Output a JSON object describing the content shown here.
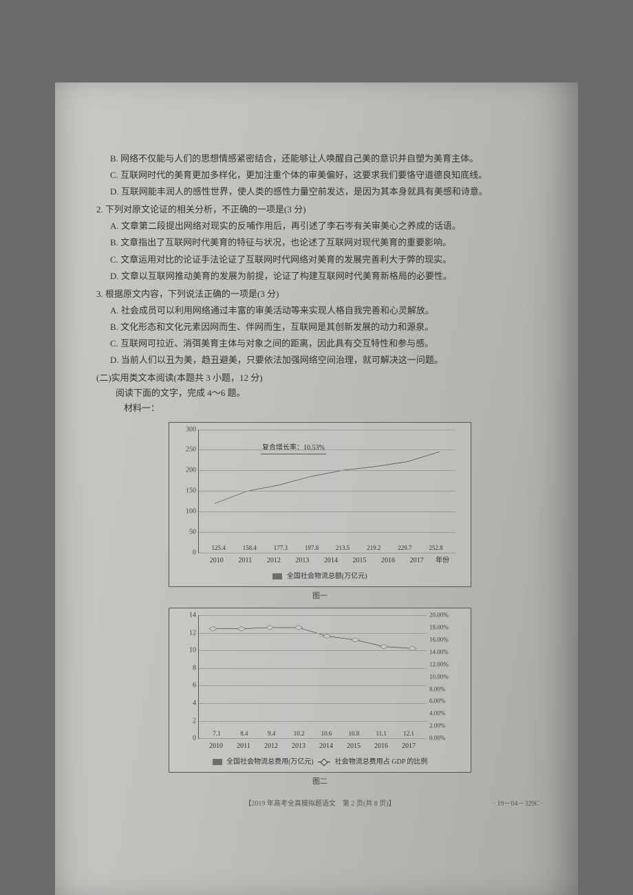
{
  "options_top": [
    "B. 网络不仅能与人们的思想情感紧密结合，还能够让人唤醒自己美的意识并自塑为美育主体。",
    "C. 互联网时代的美育更加多样化，更加注重个体的审美偏好，这要求我们要恪守道德良知底线。",
    "D. 互联网能丰润人的感性世界，使人类的感性力量空前发达，是因为其本身就具有美感和诗意。"
  ],
  "q2": {
    "stem": "2. 下列对原文论证的相关分析，不正确的一项是(3 分)",
    "opts": [
      "A. 文章第二段提出网络对现实的反哺作用后，再引述了李石岑有关审美心之养成的话语。",
      "B. 文章指出了互联网时代美育的特征与状况，也论述了互联网对现代美育的重要影响。",
      "C. 文章运用对比的论证手法论证了互联网时代网络对美育的发展完善利大于弊的现实。",
      "D. 文章以互联网推动美育的发展为前提，论证了构建互联网时代美育新格局的必要性。"
    ]
  },
  "q3": {
    "stem": "3. 根据原文内容，下列说法正确的一项是(3 分)",
    "opts": [
      "A. 社会成员可以利用网络通过丰富的审美活动等来实现人格自我完善和心灵解放。",
      "B. 文化形态和文化元素因网而生、伴网而生，互联网是其创新发展的动力和源泉。",
      "C. 互联网可拉近、消弭美育主体与对象之间的距离，因此具有交互特性和参与感。",
      "D. 当前人们以丑为美，趋丑避美，只要依法加强网络空间治理，就可解决这一问题。"
    ]
  },
  "section": "(二)实用类文本阅读(本题共 3 小题，12 分)",
  "read_instr": "阅读下面的文字，完成 4～6 题。",
  "material_head": "材料一：",
  "chart1": {
    "type": "bar-line",
    "ylim": [
      0,
      300
    ],
    "ytick_step": 50,
    "categories": [
      "2010",
      "2011",
      "2012",
      "2013",
      "2014",
      "2015",
      "2016",
      "2017"
    ],
    "x_unit_label": "年份",
    "values": [
      125.4,
      158.4,
      177.3,
      197.8,
      213.5,
      219.2,
      229.7,
      252.8
    ],
    "bar_color": "#6e6f6c",
    "grid_color": "#999999",
    "annotation": "复合增长率：10.53%",
    "line_points": [
      0.4,
      0.5,
      0.55,
      0.62,
      0.67,
      0.7,
      0.74,
      0.82
    ],
    "legend": "全国社会物流总额(万亿元)",
    "caption": "图一"
  },
  "chart2": {
    "type": "bar-line-dual-axis",
    "ylim": [
      0,
      14
    ],
    "ytick_step": 2,
    "y2lim": [
      0,
      20
    ],
    "y2tick_step": 2,
    "y2_suffix": "%",
    "categories": [
      "2010",
      "2011",
      "2012",
      "2013",
      "2014",
      "2015",
      "2016",
      "2017"
    ],
    "x_unit_label": "",
    "values": [
      7.1,
      8.4,
      9.4,
      10.2,
      10.6,
      10.8,
      11.1,
      12.1
    ],
    "bar_color": "#6e6f6c",
    "line_pct": [
      17.8,
      17.8,
      18.0,
      18.0,
      16.6,
      16.0,
      14.9,
      14.6
    ],
    "line_marker": "diamond-open",
    "legend_bar": "全国社会物流总费用(万亿元)",
    "legend_line": "社会物流总费用占 GDP 的比例",
    "caption": "图二"
  },
  "footer": "【2019 年高考全真模拟题语文　第 2 页(共 8 页)】",
  "footer_code": "· 19－04－329C ·"
}
